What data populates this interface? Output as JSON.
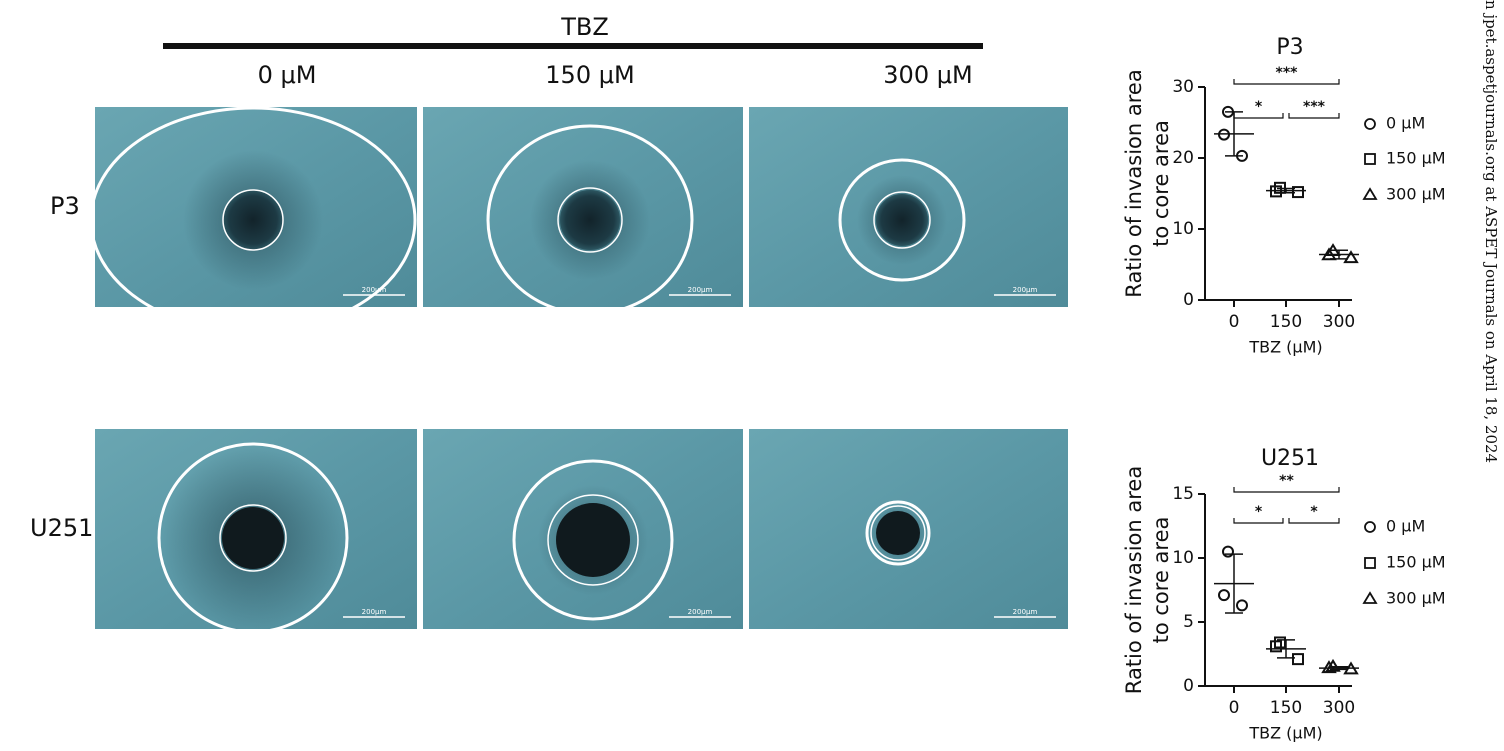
{
  "figure": {
    "treatment": "TBZ",
    "doses": [
      "0 μM",
      "150 μM",
      "300 μM"
    ],
    "rows": [
      "P3",
      "U251"
    ],
    "scale_bars": [
      [
        "200μm",
        "200μm",
        "200μm"
      ],
      [
        "200μm",
        "200μm",
        "200μm"
      ]
    ],
    "side_note": "n jpet.aspetjournals.org at ASPET Journals on April 18, 2024"
  },
  "chart_data": [
    {
      "type": "scatter",
      "title": "P3",
      "y_label": [
        "Ratio of invasion area",
        "to core area"
      ],
      "x_label": "TBZ (μM)",
      "categories": [
        "0",
        "150",
        "300"
      ],
      "ylim": [
        0,
        30
      ],
      "yticks": [
        0,
        10,
        20,
        30
      ],
      "series": [
        {
          "name": "0 μM",
          "marker": "circle",
          "values": [
            26.5,
            23.3,
            20.3
          ],
          "mean": 23.4,
          "sd": 3.1
        },
        {
          "name": "150 μM",
          "marker": "square",
          "values": [
            15.8,
            15.3,
            15.2
          ],
          "mean": 15.4,
          "sd": 0.3
        },
        {
          "name": "300 μM",
          "marker": "triangle",
          "values": [
            6.9,
            6.3,
            5.9
          ],
          "mean": 6.4,
          "sd": 0.6
        }
      ],
      "comparisons": [
        {
          "label": "***",
          "groups": [
            "0",
            "300"
          ]
        },
        {
          "label": "*",
          "groups": [
            "0",
            "150"
          ]
        },
        {
          "label": "***",
          "groups": [
            "150",
            "300"
          ]
        }
      ]
    },
    {
      "type": "scatter",
      "title": "U251",
      "y_label": [
        "Ratio of invasion area",
        "to core area"
      ],
      "x_label": "TBZ (μM)",
      "categories": [
        "0",
        "150",
        "300"
      ],
      "ylim": [
        0,
        15
      ],
      "yticks": [
        0,
        5,
        10,
        15
      ],
      "series": [
        {
          "name": "0 μM",
          "marker": "circle",
          "values": [
            10.5,
            7.1,
            6.3
          ],
          "mean": 8.0,
          "sd": 2.3
        },
        {
          "name": "150 μM",
          "marker": "square",
          "values": [
            3.4,
            3.1,
            2.1
          ],
          "mean": 2.9,
          "sd": 0.7
        },
        {
          "name": "300 μM",
          "marker": "triangle",
          "values": [
            1.5,
            1.4,
            1.3
          ],
          "mean": 1.4,
          "sd": 0.1
        }
      ],
      "comparisons": [
        {
          "label": "**",
          "groups": [
            "0",
            "300"
          ]
        },
        {
          "label": "*",
          "groups": [
            "0",
            "150"
          ]
        },
        {
          "label": "*",
          "groups": [
            "150",
            "300"
          ]
        }
      ]
    }
  ]
}
